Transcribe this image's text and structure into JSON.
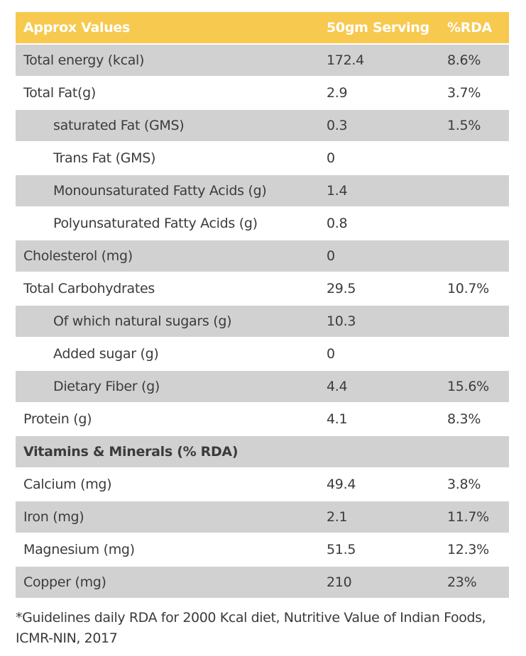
{
  "colors": {
    "header_bg": "#F8C94F",
    "row_alt_bg": "#D1D1D1",
    "text": "#3B3B3B",
    "header_text": "#FFFFFF"
  },
  "table": {
    "columns": [
      "Approx Values",
      "50gm Serving",
      "%RDA"
    ],
    "rows": [
      {
        "label": "Total energy (kcal)",
        "value": "172.4",
        "rda": "8.6%",
        "indent": false,
        "shade": "gray",
        "section": false
      },
      {
        "label": "Total Fat(g)",
        "value": "2.9",
        "rda": "3.7%",
        "indent": false,
        "shade": "white",
        "section": false
      },
      {
        "label": "saturated Fat (GMS)",
        "value": "0.3",
        "rda": "1.5%",
        "indent": true,
        "shade": "gray",
        "section": false
      },
      {
        "label": "Trans Fat (GMS)",
        "value": "0",
        "rda": "",
        "indent": true,
        "shade": "white",
        "section": false
      },
      {
        "label": "Monounsaturated Fatty Acids (g)",
        "value": "1.4",
        "rda": "",
        "indent": true,
        "shade": "gray",
        "section": false
      },
      {
        "label": "Polyunsaturated Fatty Acids (g)",
        "value": "0.8",
        "rda": "",
        "indent": true,
        "shade": "white",
        "section": false
      },
      {
        "label": "Cholesterol (mg)",
        "value": "0",
        "rda": "",
        "indent": false,
        "shade": "gray",
        "section": false
      },
      {
        "label": "Total Carbohydrates",
        "value": "29.5",
        "rda": "10.7%",
        "indent": false,
        "shade": "white",
        "section": false
      },
      {
        "label": "Of which natural sugars (g)",
        "value": "10.3",
        "rda": "",
        "indent": true,
        "shade": "gray",
        "section": false
      },
      {
        "label": "Added sugar (g)",
        "value": "0",
        "rda": "",
        "indent": true,
        "shade": "white",
        "section": false
      },
      {
        "label": "Dietary Fiber (g)",
        "value": "4.4",
        "rda": "15.6%",
        "indent": true,
        "shade": "gray",
        "section": false
      },
      {
        "label": "Protein (g)",
        "value": "4.1",
        "rda": "8.3%",
        "indent": false,
        "shade": "white",
        "section": false
      },
      {
        "label": "Vitamins & Minerals (% RDA)",
        "value": "",
        "rda": "",
        "indent": false,
        "shade": "gray",
        "section": true
      },
      {
        "label": "Calcium (mg)",
        "value": "49.4",
        "rda": "3.8%",
        "indent": false,
        "shade": "white",
        "section": false
      },
      {
        "label": "Iron (mg)",
        "value": "2.1",
        "rda": "11.7%",
        "indent": false,
        "shade": "gray",
        "section": false
      },
      {
        "label": "Magnesium (mg)",
        "value": "51.5",
        "rda": "12.3%",
        "indent": false,
        "shade": "white",
        "section": false
      },
      {
        "label": "Copper (mg)",
        "value": "210",
        "rda": "23%",
        "indent": false,
        "shade": "gray",
        "section": false
      }
    ]
  },
  "footer": {
    "note": "*Guidelines daily RDA for 2000 Kcal diet, Nutritive Value of Indian Foods, ICMR-NIN, 2017"
  }
}
